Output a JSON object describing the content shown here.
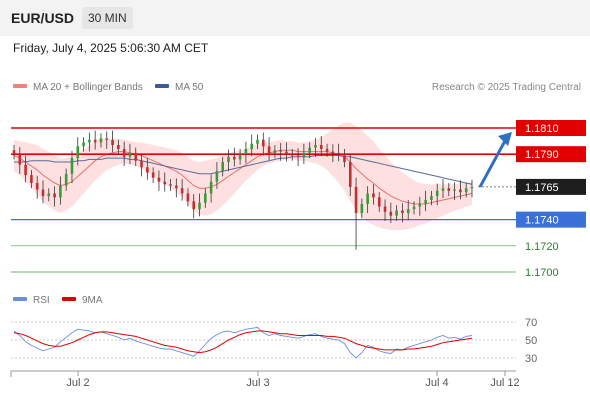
{
  "header": {
    "symbol": "EUR/USD",
    "timeframe": "30 MIN"
  },
  "timestamp": "Friday, July 4, 2025 5:06:30 AM CET",
  "legend": {
    "ma20": "MA 20 + Bollinger Bands",
    "ma50": "MA 50",
    "credit": "Research © 2025 Trading Central",
    "rsi": "RSI",
    "rsi_ma": "9MA"
  },
  "colors": {
    "up": "#3a9a3a",
    "down": "#c03030",
    "bb": "#ffd6d6",
    "ma20": "#e87070",
    "ma50": "#5a6b9a",
    "resistance": "#e00000",
    "support": "#3a70d8",
    "target": "#2f6fc0",
    "rsi": "#6b8ce0",
    "rsi_ma": "#e00000"
  },
  "chart_data": [
    {
      "type": "candlestick",
      "title": "EUR/USD 30 MIN",
      "ylim": [
        1.169,
        1.182
      ],
      "x_ticks": [
        "Jul 2",
        "Jul 3",
        "Jul 4",
        "Jul 12"
      ],
      "price_levels": [
        {
          "label": "1.1810",
          "value": 1.181,
          "style": "resistance"
        },
        {
          "label": "1.1790",
          "value": 1.179,
          "style": "resistance"
        },
        {
          "label": "1.1765",
          "value": 1.1765,
          "style": "current"
        },
        {
          "label": "1.1740",
          "value": 1.174,
          "style": "support"
        },
        {
          "label": "1.1720",
          "value": 1.172,
          "style": "minor"
        },
        {
          "label": "1.1700",
          "value": 1.17,
          "style": "minor"
        }
      ],
      "forecast_target": 1.181,
      "close_series": [
        1.179,
        1.1782,
        1.1774,
        1.1768,
        1.1763,
        1.1758,
        1.176,
        1.1757,
        1.1766,
        1.1775,
        1.1787,
        1.1796,
        1.1799,
        1.1801,
        1.1799,
        1.1802,
        1.1801,
        1.1797,
        1.1794,
        1.1788,
        1.1791,
        1.1785,
        1.178,
        1.1776,
        1.1772,
        1.1769,
        1.1767,
        1.1766,
        1.1764,
        1.176,
        1.1754,
        1.1748,
        1.1753,
        1.176,
        1.1769,
        1.1777,
        1.1784,
        1.1788,
        1.1786,
        1.179,
        1.1794,
        1.1798,
        1.1801,
        1.1796,
        1.1791,
        1.1793,
        1.1792,
        1.179,
        1.1789,
        1.1788,
        1.1791,
        1.1795,
        1.1797,
        1.1794,
        1.1792,
        1.1791,
        1.179,
        1.1784,
        1.1765,
        1.1745,
        1.1752,
        1.176,
        1.1757,
        1.175,
        1.1746,
        1.1743,
        1.1747,
        1.1745,
        1.1748,
        1.175,
        1.1752,
        1.1755,
        1.1758,
        1.1762,
        1.1764,
        1.1762,
        1.1763,
        1.1761,
        1.1764,
        1.1765
      ],
      "ma20": [
        1.1789,
        1.1787,
        1.1784,
        1.1781,
        1.1778,
        1.1774,
        1.1771,
        1.1768,
        1.1766,
        1.1767,
        1.1769,
        1.1773,
        1.1777,
        1.1781,
        1.1785,
        1.1788,
        1.179,
        1.1791,
        1.1792,
        1.1792,
        1.1791,
        1.179,
        1.1789,
        1.1787,
        1.1785,
        1.1783,
        1.1781,
        1.1779,
        1.1777,
        1.1774,
        1.177,
        1.1766,
        1.1764,
        1.1764,
        1.1765,
        1.1767,
        1.177,
        1.1773,
        1.1776,
        1.1779,
        1.1782,
        1.1785,
        1.1788,
        1.179,
        1.1791,
        1.1792,
        1.1793,
        1.1793,
        1.1793,
        1.1792,
        1.1792,
        1.1792,
        1.1792,
        1.1792,
        1.1792,
        1.1791,
        1.179,
        1.1788,
        1.1784,
        1.1779,
        1.1775,
        1.1771,
        1.1768,
        1.1764,
        1.1761,
        1.1758,
        1.1756,
        1.1754,
        1.1753,
        1.1752,
        1.1752,
        1.1752,
        1.1753,
        1.1754,
        1.1755,
        1.1756,
        1.1757,
        1.1758,
        1.1759,
        1.176
      ],
      "bb_width": [
        0.0012,
        0.0013,
        0.0015,
        0.0017,
        0.0019,
        0.002,
        0.0021,
        0.0021,
        0.0021,
        0.002,
        0.0019,
        0.0018,
        0.0017,
        0.0016,
        0.0015,
        0.0014,
        0.0012,
        0.0011,
        0.001,
        0.0009,
        0.0009,
        0.0009,
        0.001,
        0.0011,
        0.0012,
        0.0013,
        0.0014,
        0.0015,
        0.0016,
        0.0017,
        0.0018,
        0.0019,
        0.002,
        0.0021,
        0.0021,
        0.002,
        0.0019,
        0.0018,
        0.0016,
        0.0014,
        0.0012,
        0.0011,
        0.001,
        0.0009,
        0.0008,
        0.0008,
        0.0008,
        0.0007,
        0.0007,
        0.0007,
        0.0007,
        0.0008,
        0.0009,
        0.0011,
        0.0014,
        0.0018,
        0.0022,
        0.0026,
        0.003,
        0.0032,
        0.0033,
        0.0033,
        0.0032,
        0.003,
        0.0028,
        0.0026,
        0.0024,
        0.0022,
        0.002,
        0.0018,
        0.0016,
        0.0015,
        0.0014,
        0.0013,
        0.0012,
        0.0011,
        0.001,
        0.001,
        0.0009,
        0.0009
      ],
      "ma50": [
        1.1784,
        1.1784,
        1.1784,
        1.1785,
        1.1785,
        1.1785,
        1.1785,
        1.1784,
        1.1784,
        1.1784,
        1.1784,
        1.1785,
        1.1785,
        1.1786,
        1.1786,
        1.1786,
        1.1787,
        1.1787,
        1.1787,
        1.1787,
        1.1786,
        1.1786,
        1.1785,
        1.1784,
        1.1783,
        1.1782,
        1.1781,
        1.178,
        1.1779,
        1.1778,
        1.1777,
        1.1776,
        1.1775,
        1.1775,
        1.1775,
        1.1776,
        1.1777,
        1.1778,
        1.1779,
        1.178,
        1.1781,
        1.1782,
        1.1783,
        1.1784,
        1.1785,
        1.1786,
        1.1787,
        1.1787,
        1.1788,
        1.1788,
        1.1788,
        1.1788,
        1.1789,
        1.1789,
        1.1789,
        1.1789,
        1.1789,
        1.1788,
        1.1788,
        1.1787,
        1.1786,
        1.1785,
        1.1784,
        1.1783,
        1.1782,
        1.1781,
        1.178,
        1.1779,
        1.1778,
        1.1777,
        1.1776,
        1.1775,
        1.1774,
        1.1773,
        1.1772,
        1.1771,
        1.177,
        1.1769,
        1.1768,
        1.1767
      ]
    },
    {
      "type": "line",
      "title": "RSI",
      "ylim": [
        20,
        80
      ],
      "y_ticks": [
        70,
        50,
        30
      ],
      "series": [
        {
          "name": "RSI",
          "values": [
            60,
            55,
            48,
            44,
            41,
            38,
            40,
            42,
            48,
            53,
            58,
            62,
            61,
            60,
            58,
            59,
            57,
            55,
            53,
            50,
            52,
            49,
            47,
            45,
            43,
            41,
            40,
            40,
            38,
            36,
            34,
            32,
            38,
            45,
            52,
            56,
            59,
            60,
            58,
            60,
            62,
            63,
            64,
            58,
            55,
            57,
            55,
            54,
            53,
            52,
            54,
            56,
            57,
            54,
            52,
            51,
            50,
            46,
            36,
            30,
            36,
            44,
            42,
            38,
            36,
            35,
            40,
            39,
            42,
            44,
            46,
            48,
            50,
            53,
            55,
            52,
            53,
            51,
            54,
            55
          ]
        },
        {
          "name": "9MA",
          "values": [
            58,
            57,
            55,
            52,
            49,
            46,
            44,
            43,
            43,
            45,
            47,
            50,
            53,
            56,
            58,
            59,
            59,
            58,
            57,
            56,
            55,
            54,
            52,
            50,
            48,
            46,
            44,
            43,
            42,
            40,
            38,
            37,
            36,
            37,
            39,
            42,
            46,
            50,
            53,
            56,
            58,
            59,
            60,
            60,
            59,
            58,
            57,
            57,
            56,
            55,
            55,
            55,
            55,
            55,
            54,
            54,
            53,
            52,
            49,
            46,
            44,
            42,
            41,
            40,
            39,
            39,
            39,
            39,
            40,
            40,
            41,
            42,
            43,
            45,
            47,
            48,
            49,
            50,
            51,
            52
          ]
        }
      ]
    }
  ]
}
